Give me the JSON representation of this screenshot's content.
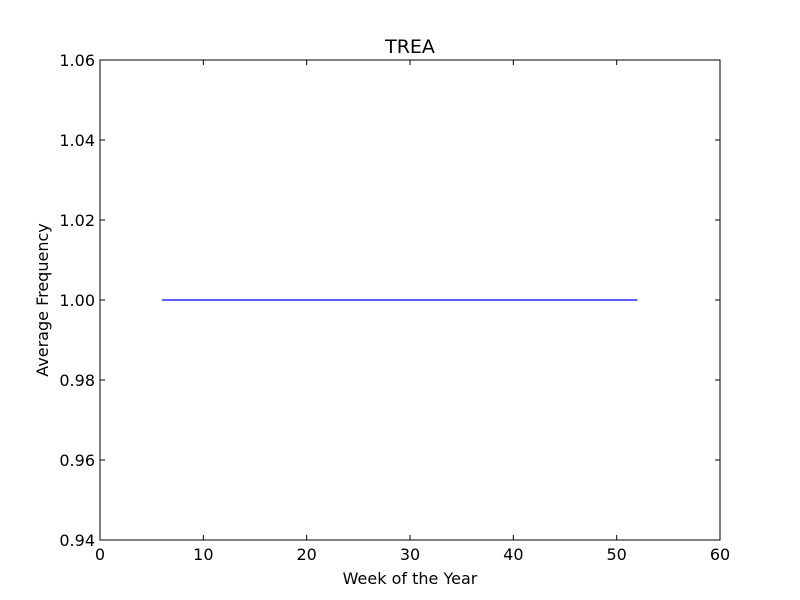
{
  "chart_data": {
    "type": "line",
    "title": "TREA",
    "xlabel": "Week of the Year",
    "ylabel": "Average Frequency",
    "xlim": [
      0,
      60
    ],
    "ylim": [
      0.94,
      1.06
    ],
    "xticks": [
      0,
      10,
      20,
      30,
      40,
      50,
      60
    ],
    "yticks": [
      0.94,
      0.96,
      0.98,
      1.0,
      1.02,
      1.04,
      1.06
    ],
    "xtick_labels": [
      "0",
      "10",
      "20",
      "30",
      "40",
      "50",
      "60"
    ],
    "ytick_labels": [
      "0.94",
      "0.96",
      "0.98",
      "1.00",
      "1.02",
      "1.04",
      "1.06"
    ],
    "grid": false,
    "series": [
      {
        "color": "#0000ff",
        "x": [
          6,
          52
        ],
        "y": [
          1.0,
          1.0
        ]
      }
    ]
  }
}
